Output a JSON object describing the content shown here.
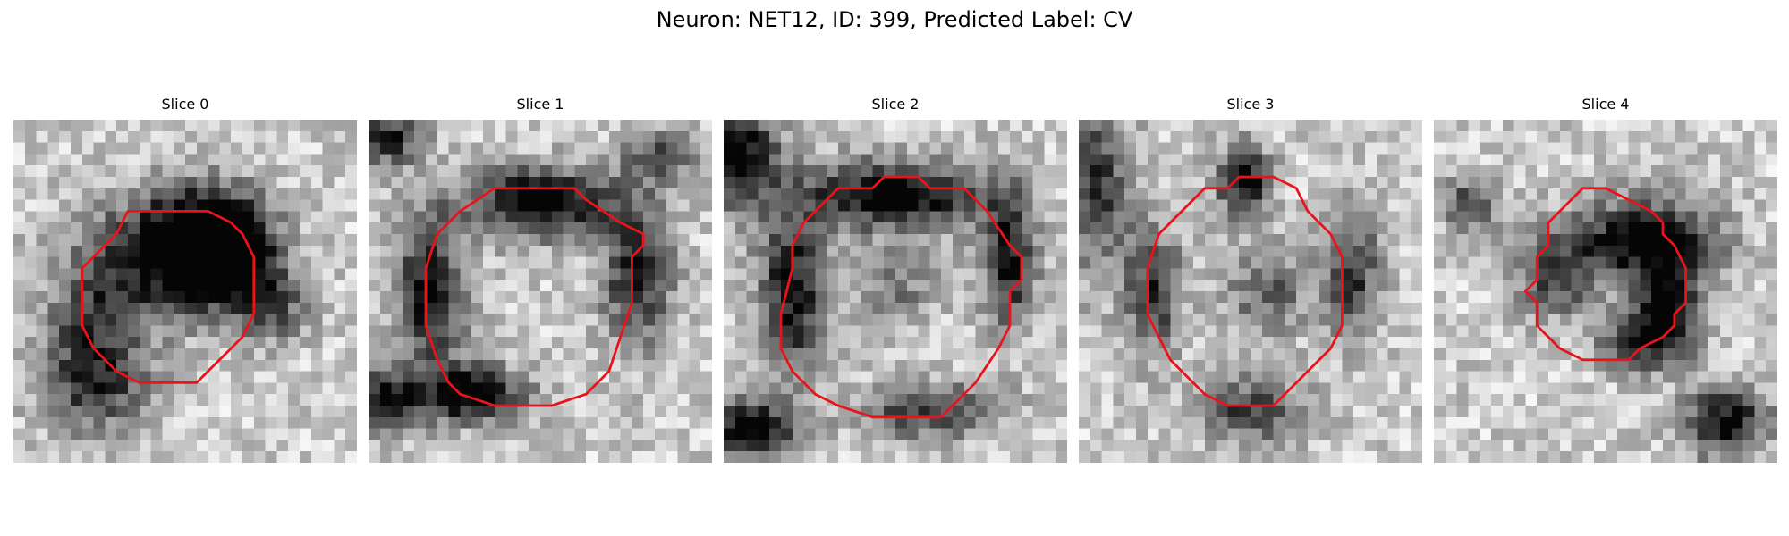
{
  "figure": {
    "title": "Neuron: NET12, ID: 399, Predicted Label: CV"
  },
  "colors": {
    "contour": "#e8141c",
    "colormap": "grayscale"
  },
  "panels": [
    {
      "title": "Slice 0",
      "dark": [
        [
          0.57,
          0.32,
          0.17,
          0.13,
          0.92
        ],
        [
          0.62,
          0.43,
          0.14,
          0.11,
          0.88
        ],
        [
          0.38,
          0.42,
          0.22,
          0.18,
          0.62
        ],
        [
          0.24,
          0.78,
          0.16,
          0.13,
          0.6
        ],
        [
          0.75,
          0.55,
          0.12,
          0.1,
          0.45
        ],
        [
          0.22,
          0.6,
          0.13,
          0.13,
          0.4
        ]
      ]
    },
    {
      "title": "Slice 1",
      "dark": [
        [
          0.5,
          0.24,
          0.22,
          0.1,
          0.85
        ],
        [
          0.18,
          0.5,
          0.1,
          0.22,
          0.75
        ],
        [
          0.78,
          0.45,
          0.1,
          0.2,
          0.7
        ],
        [
          0.3,
          0.8,
          0.15,
          0.08,
          0.9
        ],
        [
          0.05,
          0.82,
          0.08,
          0.09,
          0.8
        ],
        [
          0.05,
          0.05,
          0.1,
          0.08,
          0.7
        ],
        [
          0.85,
          0.1,
          0.1,
          0.08,
          0.5
        ]
      ]
    },
    {
      "title": "Slice 2",
      "dark": [
        [
          0.5,
          0.22,
          0.25,
          0.1,
          0.9
        ],
        [
          0.2,
          0.5,
          0.1,
          0.25,
          0.75
        ],
        [
          0.83,
          0.4,
          0.08,
          0.2,
          0.75
        ],
        [
          0.6,
          0.85,
          0.2,
          0.08,
          0.6
        ],
        [
          0.05,
          0.1,
          0.1,
          0.15,
          0.85
        ],
        [
          0.08,
          0.9,
          0.12,
          0.08,
          0.85
        ],
        [
          0.5,
          0.5,
          0.12,
          0.12,
          0.3
        ]
      ]
    },
    {
      "title": "Slice 3",
      "dark": [
        [
          0.48,
          0.18,
          0.08,
          0.1,
          0.8
        ],
        [
          0.22,
          0.5,
          0.08,
          0.18,
          0.6
        ],
        [
          0.8,
          0.45,
          0.08,
          0.18,
          0.6
        ],
        [
          0.05,
          0.2,
          0.1,
          0.25,
          0.6
        ],
        [
          0.5,
          0.85,
          0.15,
          0.1,
          0.55
        ],
        [
          0.55,
          0.5,
          0.12,
          0.12,
          0.45
        ]
      ]
    },
    {
      "title": "Slice 4",
      "dark": [
        [
          0.62,
          0.35,
          0.2,
          0.12,
          0.85
        ],
        [
          0.68,
          0.55,
          0.09,
          0.12,
          0.9
        ],
        [
          0.35,
          0.45,
          0.12,
          0.12,
          0.55
        ],
        [
          0.6,
          0.65,
          0.12,
          0.08,
          0.55
        ],
        [
          0.85,
          0.88,
          0.12,
          0.1,
          0.8
        ],
        [
          0.1,
          0.25,
          0.08,
          0.08,
          0.5
        ]
      ]
    }
  ]
}
